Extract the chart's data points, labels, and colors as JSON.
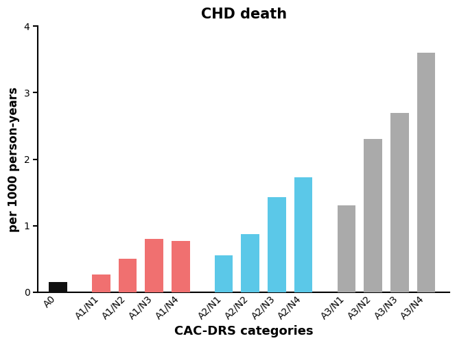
{
  "categories": [
    "A0",
    "A1/N1",
    "A1/N2",
    "A1/N3",
    "A1/N4",
    "A2/N1",
    "A2/N2",
    "A2/N3",
    "A2/N4",
    "A3/N1",
    "A3/N2",
    "A3/N3",
    "A3/N4"
  ],
  "values": [
    0.15,
    0.27,
    0.5,
    0.8,
    0.77,
    0.55,
    0.87,
    1.43,
    1.73,
    1.3,
    2.3,
    2.7,
    3.6
  ],
  "colors": [
    "#111111",
    "#F07070",
    "#F07070",
    "#F07070",
    "#F07070",
    "#5BC8E8",
    "#5BC8E8",
    "#5BC8E8",
    "#5BC8E8",
    "#AAAAAA",
    "#AAAAAA",
    "#AAAAAA",
    "#AAAAAA"
  ],
  "title": "CHD death",
  "xlabel": "CAC-DRS categories",
  "ylabel": "per 1000 person-years",
  "ylim": [
    0,
    4
  ],
  "yticks": [
    0,
    1,
    2,
    3,
    4
  ],
  "title_fontsize": 15,
  "label_fontsize": 12,
  "tick_fontsize": 10,
  "bar_width": 0.55,
  "x_positions": [
    0,
    1.3,
    2.1,
    2.9,
    3.7,
    5.0,
    5.8,
    6.6,
    7.4,
    8.7,
    9.5,
    10.3,
    11.1
  ]
}
